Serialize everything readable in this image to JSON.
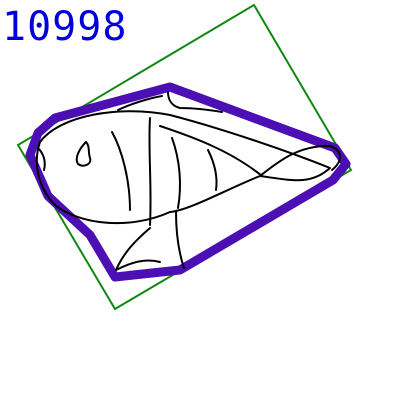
{
  "id_label": "10998",
  "colors": {
    "label": "#0000dd",
    "bounding_box": "#118811",
    "outline": "#4b0fb4",
    "sketch": "#000000",
    "background": "#ffffff"
  },
  "drawing_subject": "fish-sketch"
}
